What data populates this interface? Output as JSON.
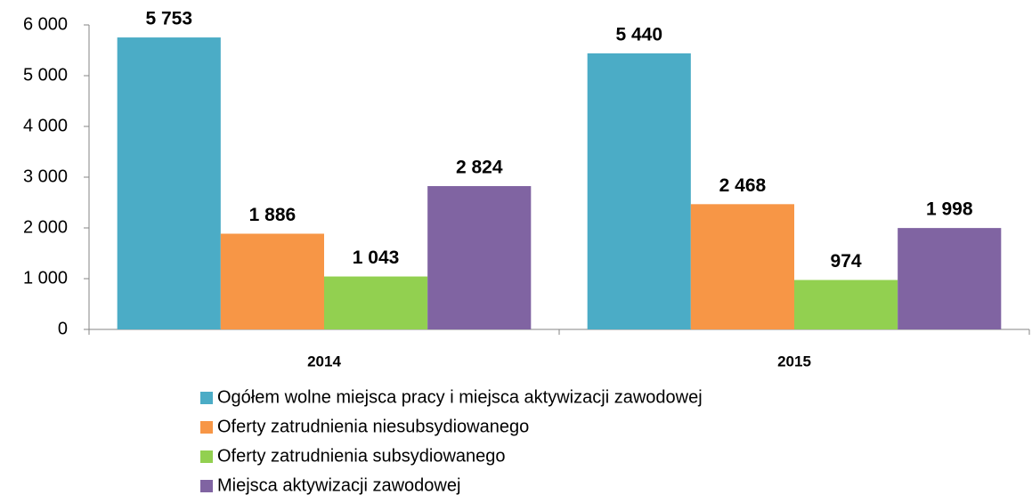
{
  "chart_data": {
    "type": "bar",
    "categories": [
      "2014",
      "2015"
    ],
    "series": [
      {
        "name": "Ogółem wolne miejsca pracy i miejsca aktywizacji zawodowej",
        "color": "#4bacc6",
        "values": [
          5753,
          5440
        ],
        "value_labels": [
          "5 753",
          "5 440"
        ]
      },
      {
        "name": "Oferty zatrudnienia niesubsydiowanego",
        "color": "#f79646",
        "values": [
          1886,
          2468
        ],
        "value_labels": [
          "1 886",
          "2 468"
        ]
      },
      {
        "name": "Oferty zatrudnienia subsydiowanego",
        "color": "#92d050",
        "values": [
          1043,
          974
        ],
        "value_labels": [
          "1 043",
          "974"
        ]
      },
      {
        "name": "Miejsca aktywizacji zawodowej",
        "color": "#8064a2",
        "values": [
          2824,
          1998
        ],
        "value_labels": [
          "2 824",
          "1 998"
        ]
      }
    ],
    "ylim": [
      0,
      6000
    ],
    "yticks": [
      0,
      {
        "value": 1000,
        "label": "1 000"
      },
      {
        "value": 2000,
        "label": "2 000"
      },
      {
        "value": 3000,
        "label": "3 000"
      },
      {
        "value": 4000,
        "label": "4 000"
      },
      {
        "value": 5000,
        "label": "5 000"
      },
      {
        "value": 6000,
        "label": "6 000"
      }
    ],
    "grid": false,
    "legend": "bottom"
  }
}
